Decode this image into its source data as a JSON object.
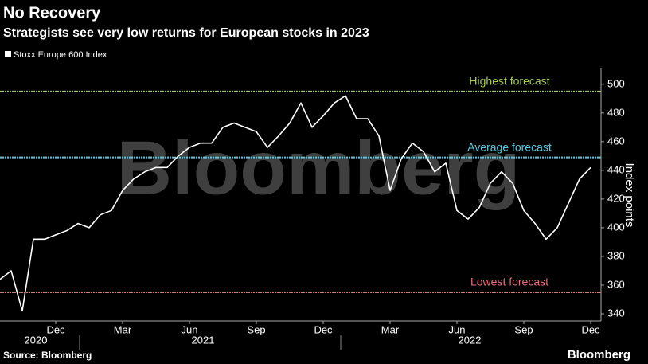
{
  "chart_data": {
    "type": "line",
    "title": "No Recovery",
    "subtitle": "Strategists see very low returns for European stocks in 2023",
    "y_label": "Index points",
    "watermark": "Bloomberg",
    "source": "Source: Bloomberg",
    "logo": "Bloomberg",
    "categories": [
      null,
      null,
      null,
      null,
      null,
      "Dec",
      null,
      null,
      null,
      null,
      null,
      "Mar",
      null,
      null,
      null,
      null,
      null,
      "Jun",
      null,
      null,
      null,
      null,
      null,
      "Sep",
      null,
      null,
      null,
      null,
      null,
      "Dec",
      null,
      null,
      null,
      null,
      null,
      "Mar",
      null,
      null,
      null,
      null,
      null,
      "Jun",
      null,
      null,
      null,
      null,
      null,
      "Sep",
      null,
      null,
      null,
      null,
      null,
      "Dec"
    ],
    "x_groups": [
      "2020",
      "2021",
      "2022"
    ],
    "series": [
      {
        "name": "Stoxx Europe 600 Index",
        "color": "#ffffff",
        "values": [
          364,
          370,
          342,
          392,
          392,
          395,
          398,
          403,
          400,
          409,
          412,
          426,
          434,
          439,
          442,
          442,
          450,
          456,
          459,
          459,
          470,
          473,
          470,
          467,
          456,
          464,
          473,
          487,
          470,
          478,
          487,
          492,
          476,
          476,
          464,
          426,
          448,
          459,
          453,
          439,
          445,
          412,
          406,
          414,
          431,
          439,
          431,
          412,
          403,
          392,
          400,
          417,
          434,
          442
        ]
      }
    ],
    "reference_lines": [
      {
        "label": "Highest forecast",
        "value": 495,
        "color": "#a8cc4c"
      },
      {
        "label": "Average forecast",
        "value": 449,
        "color": "#5cc8e0"
      },
      {
        "label": "Lowest forecast",
        "value": 355,
        "color": "#e8707e"
      }
    ],
    "ylim": [
      335,
      511
    ],
    "yticks": [
      340,
      360,
      380,
      400,
      420,
      440,
      460,
      480,
      500
    ],
    "axis_side": "right"
  }
}
